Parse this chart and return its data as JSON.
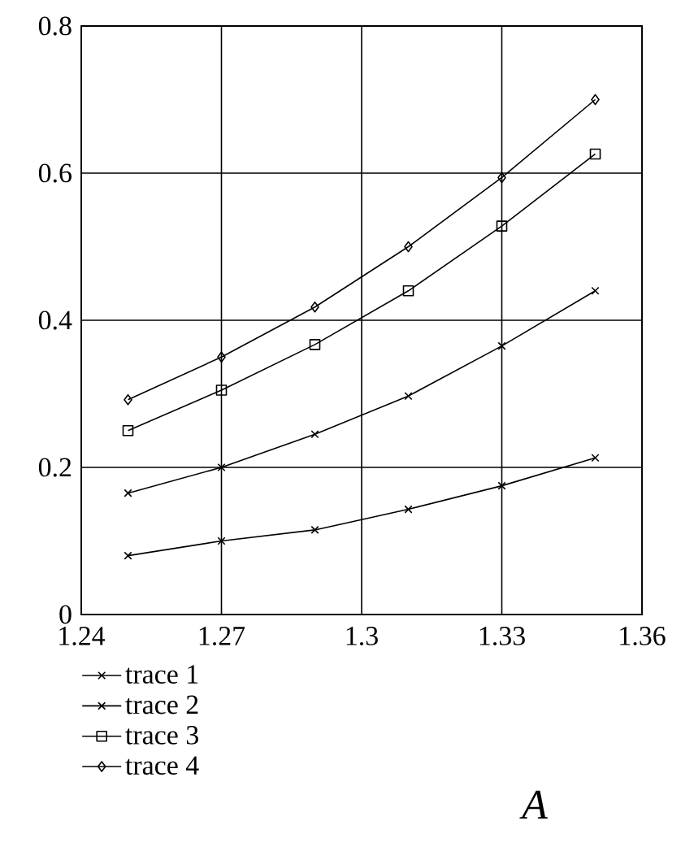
{
  "chart_data": {
    "type": "line",
    "xlim": [
      1.24,
      1.36
    ],
    "ylim": [
      0,
      0.8
    ],
    "xticks": [
      1.24,
      1.27,
      1.3,
      1.33,
      1.36
    ],
    "yticks": [
      0,
      0.2,
      0.4,
      0.6,
      0.8
    ],
    "x": [
      1.25,
      1.27,
      1.29,
      1.31,
      1.33,
      1.35
    ],
    "series": [
      {
        "name": "trace 1",
        "color": "#000000",
        "marker": "cross",
        "values": [
          0.08,
          0.1,
          0.115,
          0.143,
          0.175,
          0.213
        ]
      },
      {
        "name": "trace 2",
        "color": "#000000",
        "marker": "cross",
        "values": [
          0.165,
          0.2,
          0.245,
          0.297,
          0.365,
          0.44
        ]
      },
      {
        "name": "trace 3",
        "color": "#000000",
        "marker": "square",
        "values": [
          0.25,
          0.305,
          0.367,
          0.44,
          0.528,
          0.626
        ]
      },
      {
        "name": "trace 4",
        "color": "#000000",
        "marker": "diamond",
        "values": [
          0.292,
          0.35,
          0.418,
          0.5,
          0.594,
          0.7
        ]
      }
    ],
    "grid": true,
    "legend": "bottom left",
    "line_style": "solid",
    "annotations": [
      "A"
    ]
  }
}
